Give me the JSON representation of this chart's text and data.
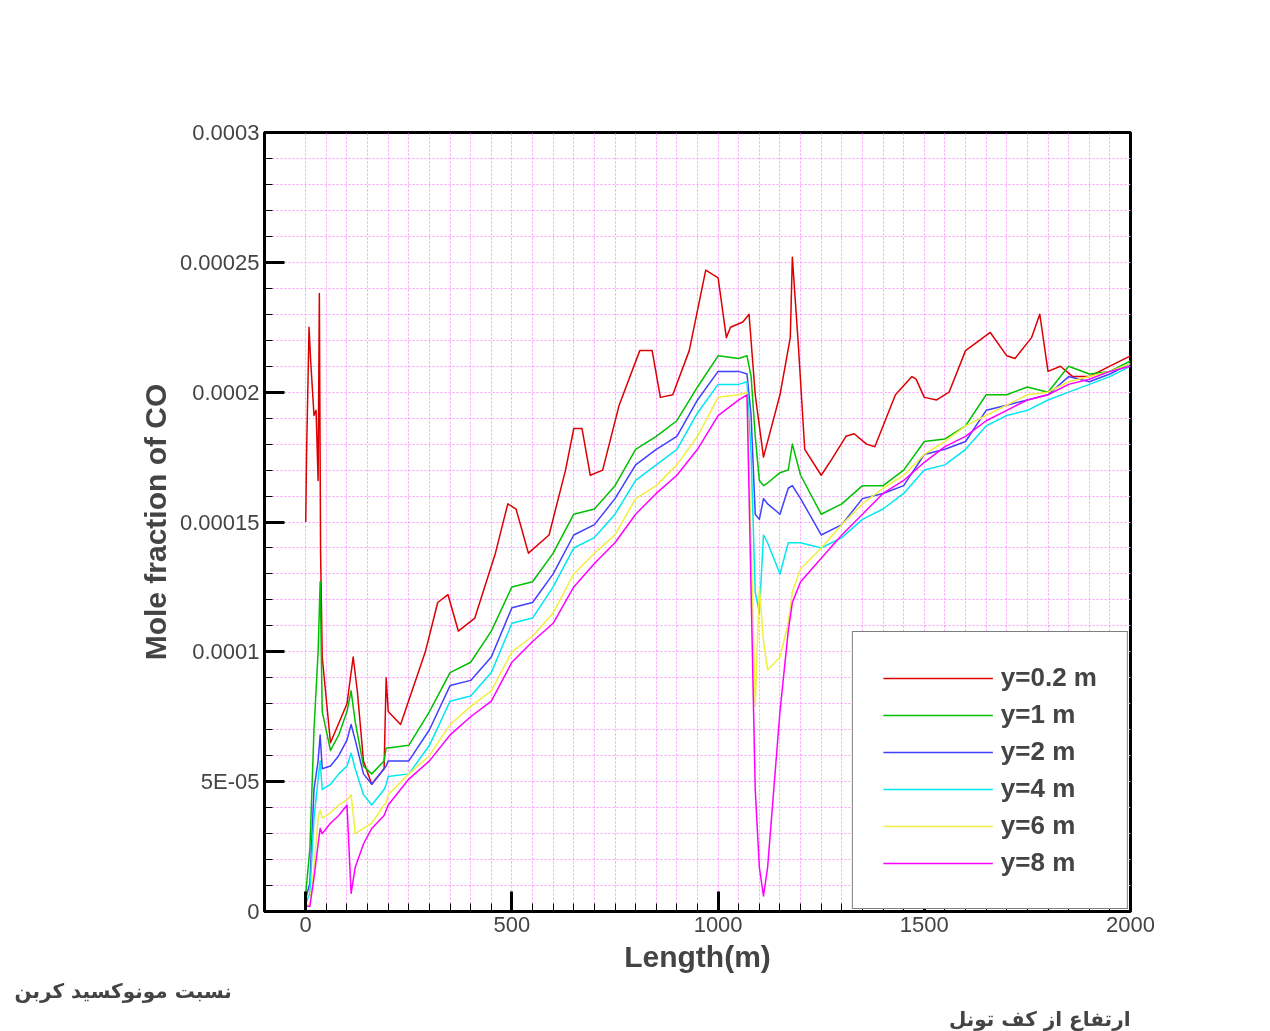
{
  "chart_data": {
    "type": "line",
    "xlabel": "Length(m)",
    "ylabel": "Mole fraction of CO",
    "annotations": [
      "نسبت مونوکسید کربن",
      "ارتفاع از کف تونل"
    ],
    "xlim": [
      -100,
      2000
    ],
    "ylim": [
      0,
      0.0003
    ],
    "xticks": [
      0,
      500,
      1000,
      1500,
      2000
    ],
    "yticks": [
      0,
      {
        "value": 5e-05,
        "label": "5E-05"
      },
      0.0001,
      0.00015,
      0.0002,
      0.00025,
      0.0003
    ],
    "grid": true,
    "legend": "bottom right",
    "marker": "none",
    "line_style": "solid",
    "series": [
      {
        "name": "y=0.2 m",
        "color": "#dd0000",
        "x": [
          0,
          2,
          8,
          12,
          20,
          25,
          30,
          33,
          36,
          40,
          60,
          100,
          115,
          125,
          140,
          160,
          190,
          195,
          200,
          230,
          290,
          320,
          345,
          370,
          410,
          460,
          490,
          510,
          540,
          590,
          630,
          650,
          670,
          690,
          720,
          760,
          810,
          840,
          860,
          890,
          930,
          970,
          1000,
          1020,
          1030,
          1060,
          1075,
          1090,
          1110,
          1150,
          1175,
          1180,
          1195,
          1210,
          1250,
          1275,
          1310,
          1330,
          1360,
          1380,
          1430,
          1470,
          1480,
          1500,
          1530,
          1560,
          1600,
          1660,
          1700,
          1720,
          1760,
          1780,
          1800,
          1830,
          1860,
          1900,
          1950,
          2000
        ],
        "values": [
          0.00015,
          0.000176,
          0.000225,
          0.000212,
          0.000191,
          0.000193,
          0.000166,
          0.000238,
          0.000138,
          9.8e-05,
          6.5e-05,
          8e-05,
          9.8e-05,
          8.5e-05,
          5.8e-05,
          4.9e-05,
          5.5e-05,
          9e-05,
          7.7e-05,
          7.2e-05,
          0.0001,
          0.000119,
          0.000122,
          0.000108,
          0.000113,
          0.000138,
          0.000157,
          0.000155,
          0.000138,
          0.000145,
          0.00017,
          0.000186,
          0.000186,
          0.000168,
          0.00017,
          0.000195,
          0.000216,
          0.000216,
          0.000198,
          0.000199,
          0.000216,
          0.000247,
          0.000244,
          0.000221,
          0.000225,
          0.000227,
          0.00023,
          0.000199,
          0.000175,
          0.000199,
          0.000221,
          0.000252,
          0.000217,
          0.000178,
          0.000168,
          0.000174,
          0.000183,
          0.000184,
          0.00018,
          0.000179,
          0.000199,
          0.000206,
          0.000205,
          0.000198,
          0.000197,
          0.0002,
          0.000216,
          0.000223,
          0.000214,
          0.000213,
          0.000221,
          0.00023,
          0.000208,
          0.00021,
          0.000206,
          0.000206,
          0.00021,
          0.000214
        ]
      },
      {
        "name": "y=1 m",
        "color": "#00c000",
        "x": [
          0,
          10,
          20,
          30,
          35,
          40,
          60,
          80,
          100,
          110,
          120,
          140,
          160,
          190,
          195,
          200,
          250,
          300,
          350,
          400,
          450,
          500,
          550,
          600,
          650,
          700,
          750,
          800,
          850,
          900,
          950,
          1000,
          1050,
          1070,
          1080,
          1090,
          1100,
          1110,
          1120,
          1150,
          1170,
          1180,
          1200,
          1250,
          1300,
          1350,
          1400,
          1450,
          1500,
          1550,
          1600,
          1650,
          1700,
          1750,
          1800,
          1850,
          1900,
          1950,
          2000
        ],
        "values": [
          7e-06,
          2.4e-05,
          7e-05,
          0.0001,
          0.000127,
          7.7e-05,
          6.2e-05,
          6.8e-05,
          7.7e-05,
          8.5e-05,
          7.3e-05,
          5.6e-05,
          5.3e-05,
          5.8e-05,
          6.3e-05,
          6.3e-05,
          6.4e-05,
          7.7e-05,
          9.2e-05,
          9.6e-05,
          0.000108,
          0.000125,
          0.000127,
          0.000138,
          0.000153,
          0.000155,
          0.000164,
          0.000178,
          0.000183,
          0.000189,
          0.000202,
          0.000214,
          0.000213,
          0.000214,
          0.000206,
          0.000183,
          0.000166,
          0.000164,
          0.000165,
          0.000169,
          0.00017,
          0.00018,
          0.000168,
          0.000153,
          0.000157,
          0.000164,
          0.000164,
          0.00017,
          0.000181,
          0.000182,
          0.000187,
          0.000199,
          0.000199,
          0.000202,
          0.0002,
          0.00021,
          0.000207,
          0.000208,
          0.000212
        ]
      },
      {
        "name": "y=2 m",
        "color": "#4040ff",
        "x": [
          0,
          10,
          20,
          30,
          35,
          40,
          60,
          80,
          100,
          110,
          120,
          140,
          160,
          190,
          195,
          200,
          250,
          300,
          350,
          400,
          450,
          500,
          550,
          600,
          650,
          700,
          750,
          800,
          850,
          900,
          950,
          1000,
          1050,
          1070,
          1080,
          1090,
          1100,
          1110,
          1120,
          1150,
          1170,
          1180,
          1200,
          1250,
          1300,
          1350,
          1400,
          1450,
          1500,
          1550,
          1600,
          1650,
          1700,
          1750,
          1800,
          1850,
          1900,
          1950,
          2000
        ],
        "values": [
          5e-06,
          1.1e-05,
          4.7e-05,
          5.8e-05,
          6.8e-05,
          5.5e-05,
          5.6e-05,
          6e-05,
          6.6e-05,
          7.2e-05,
          6.6e-05,
          5.3e-05,
          4.9e-05,
          5.5e-05,
          5.6e-05,
          5.8e-05,
          5.8e-05,
          7e-05,
          8.7e-05,
          8.9e-05,
          9.8e-05,
          0.000117,
          0.000119,
          0.00013,
          0.000145,
          0.000149,
          0.000159,
          0.000172,
          0.000178,
          0.000183,
          0.000197,
          0.000208,
          0.000208,
          0.000207,
          0.000191,
          0.000153,
          0.000151,
          0.000159,
          0.000157,
          0.000153,
          0.000163,
          0.000164,
          0.000159,
          0.000145,
          0.000149,
          0.000159,
          0.000161,
          0.000164,
          0.000176,
          0.000178,
          0.000181,
          0.000193,
          0.000195,
          0.000197,
          0.000199,
          0.000206,
          0.000204,
          0.000207,
          0.000211
        ]
      },
      {
        "name": "y=4 m",
        "color": "#00e8f0",
        "x": [
          0,
          10,
          20,
          30,
          35,
          40,
          60,
          80,
          100,
          110,
          120,
          140,
          160,
          190,
          195,
          200,
          250,
          300,
          350,
          400,
          450,
          500,
          550,
          600,
          650,
          700,
          750,
          800,
          850,
          900,
          950,
          1000,
          1050,
          1070,
          1080,
          1090,
          1100,
          1110,
          1120,
          1150,
          1170,
          1180,
          1200,
          1250,
          1300,
          1350,
          1400,
          1450,
          1500,
          1550,
          1600,
          1650,
          1700,
          1750,
          1800,
          1850,
          1900,
          1950,
          2000
        ],
        "values": [
          3e-06,
          7e-06,
          3.6e-05,
          5.1e-05,
          5.8e-05,
          4.7e-05,
          4.9e-05,
          5.3e-05,
          5.6e-05,
          6.1e-05,
          5.5e-05,
          4.5e-05,
          4.1e-05,
          4.7e-05,
          4.9e-05,
          5.2e-05,
          5.3e-05,
          6.4e-05,
          8.1e-05,
          8.3e-05,
          9.2e-05,
          0.000111,
          0.000113,
          0.000125,
          0.00014,
          0.000144,
          0.000153,
          0.000166,
          0.000172,
          0.000178,
          0.000192,
          0.000203,
          0.000203,
          0.000204,
          0.000176,
          0.000123,
          0.000115,
          0.000145,
          0.000142,
          0.00013,
          0.000142,
          0.000142,
          0.000142,
          0.00014,
          0.000144,
          0.000151,
          0.000155,
          0.000161,
          0.00017,
          0.000172,
          0.000178,
          0.000187,
          0.000191,
          0.000193,
          0.000197,
          0.0002,
          0.000203,
          0.000206,
          0.00021
        ]
      },
      {
        "name": "y=6 m",
        "color": "#f0f040",
        "x": [
          0,
          10,
          20,
          30,
          35,
          40,
          60,
          80,
          100,
          110,
          120,
          140,
          160,
          190,
          195,
          200,
          250,
          300,
          350,
          400,
          450,
          500,
          550,
          600,
          650,
          700,
          750,
          800,
          850,
          900,
          950,
          1000,
          1050,
          1070,
          1080,
          1090,
          1100,
          1110,
          1120,
          1150,
          1170,
          1180,
          1200,
          1250,
          1300,
          1350,
          1400,
          1450,
          1500,
          1550,
          1600,
          1650,
          1700,
          1750,
          1800,
          1850,
          1900,
          1950,
          2000
        ],
        "values": [
          2e-06,
          3e-06,
          1.7e-05,
          3.6e-05,
          3.9e-05,
          3.6e-05,
          3.8e-05,
          4.1e-05,
          4.3e-05,
          4.5e-05,
          3e-05,
          3.2e-05,
          3.4e-05,
          4.1e-05,
          4.2e-05,
          4.5e-05,
          5.3e-05,
          6e-05,
          7.2e-05,
          7.9e-05,
          8.5e-05,
          0.0001,
          0.000106,
          0.000115,
          0.00013,
          0.000138,
          0.000145,
          0.000159,
          0.000164,
          0.000172,
          0.000183,
          0.000198,
          0.000199,
          0.0002,
          0.000142,
          7.9e-05,
          0.000125,
          0.000104,
          9.3e-05,
          9.8e-05,
          0.000111,
          0.000123,
          0.000132,
          0.00014,
          0.000149,
          0.000157,
          0.000163,
          0.000168,
          0.000176,
          0.000181,
          0.000187,
          0.000191,
          0.000195,
          0.000199,
          0.0002,
          0.000204,
          0.000206,
          0.000208,
          0.000211
        ]
      },
      {
        "name": "y=8 m",
        "color": "#ff00ff",
        "x": [
          0,
          10,
          20,
          30,
          35,
          40,
          60,
          80,
          100,
          110,
          120,
          140,
          160,
          190,
          195,
          200,
          250,
          300,
          350,
          400,
          450,
          500,
          550,
          600,
          650,
          700,
          750,
          800,
          850,
          900,
          950,
          1000,
          1050,
          1070,
          1080,
          1090,
          1100,
          1110,
          1120,
          1150,
          1170,
          1180,
          1200,
          1250,
          1300,
          1350,
          1400,
          1450,
          1500,
          1550,
          1600,
          1650,
          1700,
          1750,
          1800,
          1850,
          1900,
          1950,
          2000
        ],
        "values": [
          2e-06,
          2e-06,
          1.3e-05,
          2.6e-05,
          3.2e-05,
          3e-05,
          3.4e-05,
          3.7e-05,
          4.1e-05,
          7e-06,
          1.7e-05,
          2.6e-05,
          3.2e-05,
          3.7e-05,
          3.9e-05,
          4.1e-05,
          5.1e-05,
          5.8e-05,
          6.8e-05,
          7.5e-05,
          8.1e-05,
          9.6e-05,
          0.000104,
          0.000111,
          0.000125,
          0.000134,
          0.000142,
          0.000153,
          0.000161,
          0.000168,
          0.000178,
          0.000191,
          0.000197,
          0.000199,
          0.000123,
          4.7e-05,
          1.7e-05,
          6e-06,
          1.7e-05,
          7.7e-05,
          0.000108,
          0.000119,
          0.000127,
          0.000136,
          0.000145,
          0.000153,
          0.000161,
          0.000166,
          0.000173,
          0.000179,
          0.000183,
          0.000189,
          0.000193,
          0.000197,
          0.000199,
          0.000203,
          0.000205,
          0.000208,
          0.00021
        ]
      }
    ]
  }
}
